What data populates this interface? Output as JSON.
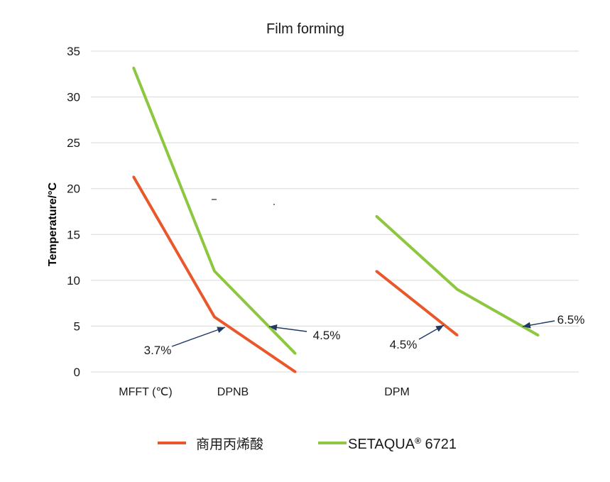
{
  "chart_data": {
    "type": "line",
    "title": "Film forming",
    "xlabel": "",
    "ylabel": "Temperature/°C",
    "ylim": [
      0,
      35
    ],
    "yticks": [
      0,
      5,
      10,
      15,
      20,
      25,
      30,
      35
    ],
    "categories": [
      "MFFT (℃)",
      "DPNB",
      "DPM"
    ],
    "grid": true,
    "legend": "bottom",
    "series": [
      {
        "name": "商用丙烯酸",
        "color": "#e9572b",
        "segments": [
          [
            21.3,
            6,
            0
          ],
          [
            11,
            4
          ]
        ]
      },
      {
        "name": "SETAQUA® 6721",
        "color": "#8dc63f",
        "segments": [
          [
            33.2,
            11,
            2
          ],
          [
            17,
            9,
            4
          ]
        ]
      }
    ],
    "annotations": [
      "3.7%",
      "4.5%",
      "4.5%",
      "6.5%"
    ]
  },
  "colors": {
    "annotation": "#1f3864",
    "grid": "#d9d9d9"
  }
}
